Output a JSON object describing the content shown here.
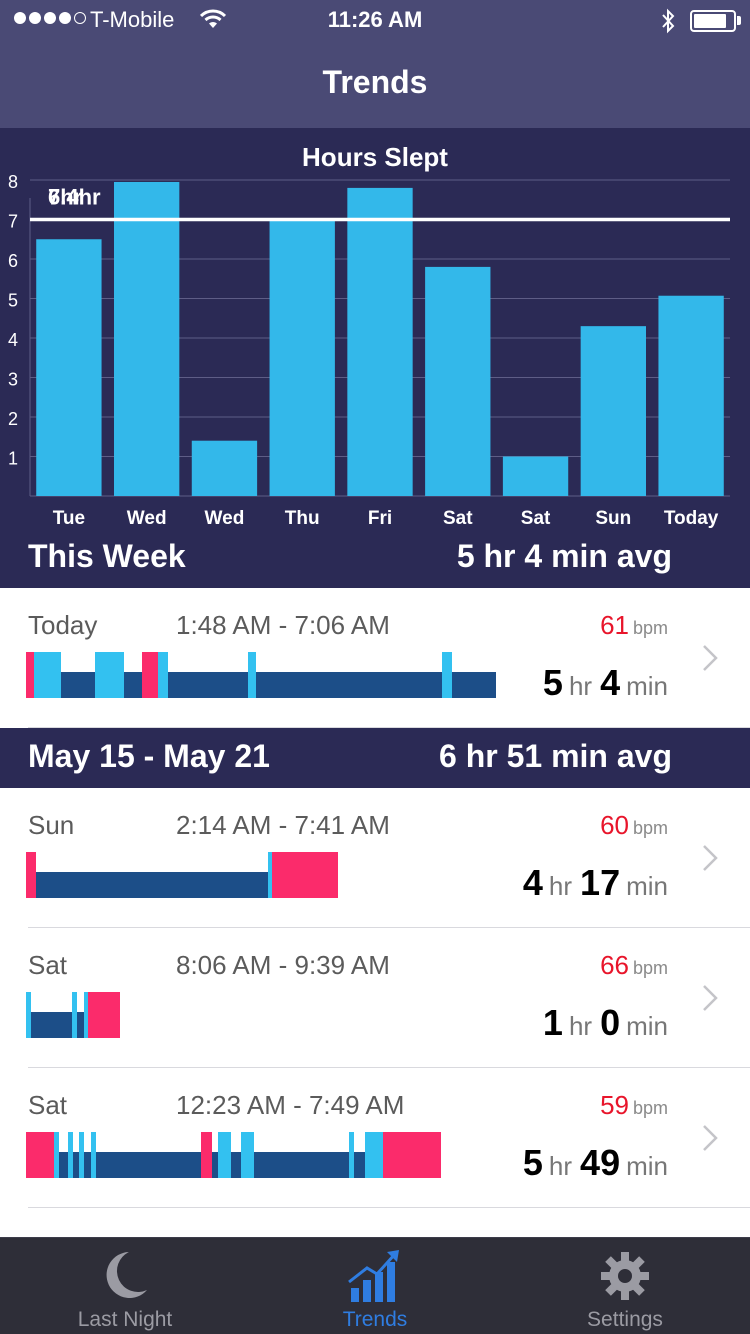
{
  "status_bar": {
    "carrier": "T-Mobile",
    "time": "11:26 AM",
    "battery_level": 0.85
  },
  "nav": {
    "title": "Trends"
  },
  "chart_data": {
    "type": "bar",
    "title": "Hours Slept",
    "categories": [
      "Tue",
      "Wed",
      "Wed",
      "Thu",
      "Fri",
      "Sat",
      "Sat",
      "Sun",
      "Today"
    ],
    "values": [
      6.5,
      7.95,
      1.4,
      7.0,
      7.8,
      5.8,
      1.0,
      4.3,
      5.07
    ],
    "ylim": [
      0,
      8
    ],
    "yticks": [
      "1",
      "2",
      "3",
      "4",
      "5",
      "6",
      "7",
      "8"
    ],
    "goal_line": {
      "value": 7,
      "label": "7hr"
    },
    "avg_label": "6.4hr",
    "grid": true,
    "bar_color": "#33b8ea"
  },
  "this_week": {
    "label": "This Week",
    "avg": "5 hr 4 min avg"
  },
  "today": {
    "day": "Today",
    "range": "1:48 AM - 7:06 AM",
    "bpm": "61",
    "bpm_unit": "bpm",
    "hours": "5",
    "hr_unit": "hr",
    "minutes": "4",
    "min_unit": "min"
  },
  "week_section": {
    "title": "May 15 - May 21",
    "avg": "6 hr 51 min avg"
  },
  "entries": [
    {
      "day": "Sun",
      "range": "2:14 AM - 7:41 AM",
      "bpm": "60",
      "bpm_unit": "bpm",
      "hours": "4",
      "hr_unit": "hr",
      "minutes": "17",
      "min_unit": "min"
    },
    {
      "day": "Sat",
      "range": "8:06 AM - 9:39 AM",
      "bpm": "66",
      "bpm_unit": "bpm",
      "hours": "1",
      "hr_unit": "hr",
      "minutes": "0",
      "min_unit": "min"
    },
    {
      "day": "Sat",
      "range": "12:23 AM - 7:49 AM",
      "bpm": "59",
      "bpm_unit": "bpm",
      "hours": "5",
      "hr_unit": "hr",
      "minutes": "49",
      "min_unit": "min"
    }
  ],
  "colors": {
    "awake": "#fb2b6b",
    "light": "#33c1f0",
    "deep": "#1c4e88",
    "accent": "#2f7de1",
    "bpm": "#e8152b"
  },
  "tabs": [
    {
      "label": "Last Night",
      "icon": "moon-icon",
      "active": false
    },
    {
      "label": "Trends",
      "icon": "trends-icon",
      "active": true
    },
    {
      "label": "Settings",
      "icon": "gear-icon",
      "active": false
    }
  ]
}
